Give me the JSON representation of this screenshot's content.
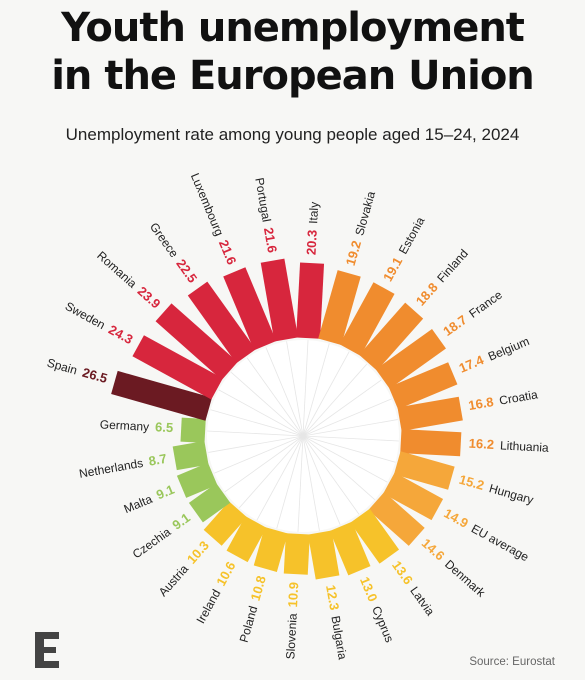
{
  "header": {
    "title_line1": "Youth unemployment",
    "title_line2": "in the European Union",
    "subtitle": "Unemployment rate among young people aged 15–24, 2024"
  },
  "footer": {
    "source": "Source: Eurostat",
    "logo_icon": "economist-e-logo-icon"
  },
  "chart_data": {
    "type": "bar",
    "layout": "radial",
    "title": "Youth unemployment in the European Union",
    "subtitle": "Unemployment rate among young people aged 15–24, 2024",
    "categories": [
      "Italy",
      "Slovakia",
      "Estonia",
      "Finland",
      "France",
      "Belgium",
      "Croatia",
      "Lithuania",
      "Hungary",
      "EU average",
      "Denmark",
      "Latvia",
      "Cyprus",
      "Bulgaria",
      "Slovenia",
      "Poland",
      "Ireland",
      "Austria",
      "Czechia",
      "Malta",
      "Netherlands",
      "Germany",
      "Spain",
      "Sweden",
      "Romania",
      "Greece",
      "Luxembourg",
      "Portugal"
    ],
    "values": [
      20.3,
      19.2,
      19.1,
      18.8,
      18.7,
      17.4,
      16.8,
      16.2,
      15.2,
      14.9,
      14.6,
      13.6,
      13.0,
      12.3,
      10.9,
      10.8,
      10.6,
      10.3,
      9.1,
      9.1,
      8.7,
      6.5,
      26.5,
      24.3,
      23.9,
      22.5,
      21.6,
      21.6
    ],
    "colors": {
      "dark_red": "#6b1a22",
      "red": "#d7263d",
      "orange": "#f08c2e",
      "light_orange": "#f5a73a",
      "yellow": "#f6c22a",
      "green": "#9ac75b",
      "label_text": "#222222"
    }
  }
}
